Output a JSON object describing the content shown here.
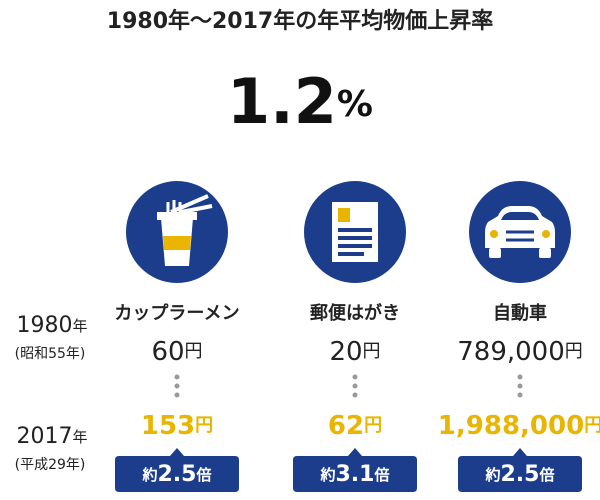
{
  "title": "1980年〜2017年の年平均物価上昇率",
  "rate": {
    "number": "1.2",
    "unit": "%"
  },
  "rows": [
    {
      "year": "1980",
      "suffix": "年",
      "era": "(昭和55年)"
    },
    {
      "year": "2017",
      "suffix": "年",
      "era": "(平成29年)"
    }
  ],
  "price_unit": "円",
  "ratio_prefix": "約",
  "ratio_suffix": "倍",
  "items": [
    {
      "name": "カップラーメン",
      "price_1980": "60",
      "price_2017": "153",
      "ratio": "2.5"
    },
    {
      "name": "郵便はがき",
      "price_1980": "20",
      "price_2017": "62",
      "ratio": "3.1"
    },
    {
      "name": "自動車",
      "price_1980": "789,000",
      "price_2017": "1,988,000",
      "ratio": "2.5"
    }
  ]
}
